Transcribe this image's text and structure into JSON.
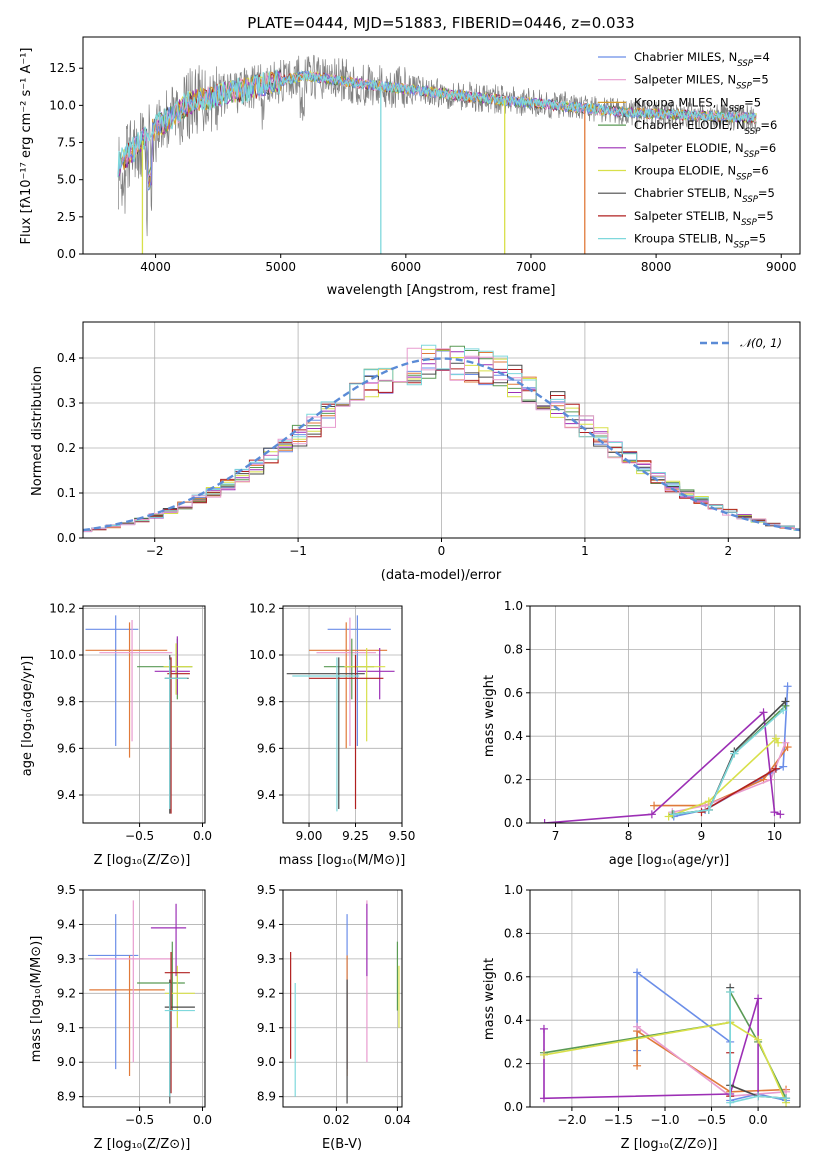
{
  "chart_data": [
    {
      "id": "spectrum",
      "type": "line",
      "title": "PLATE=0444, MJD=51883, FIBERID=0446, z=0.033",
      "xlabel": "wavelength [Angstrom, rest frame]",
      "ylabel": "Flux [fλ10⁻¹⁷ erg cm⁻² s⁻¹ A⁻¹]",
      "xlim": [
        3420,
        9150
      ],
      "ylim": [
        0,
        14.6
      ],
      "xticks": [
        4000,
        5000,
        6000,
        7000,
        8000,
        9000
      ],
      "yticks": [
        0.0,
        2.5,
        5.0,
        7.5,
        10.0,
        12.5
      ],
      "ytick_labels": [
        "0.0",
        "2.5",
        "5.0",
        "7.5",
        "10.0",
        "12.5"
      ],
      "legend_position": "top-right",
      "series": [
        {
          "name": "Chabrier MILES, N",
          "sub": "SSP",
          "tail": "=4",
          "color": "#6b8ee8"
        },
        {
          "name": "Salpeter MILES, N",
          "sub": "SSP",
          "tail": "=5",
          "color": "#e89ccf"
        },
        {
          "name": "Kroupa MILES, N",
          "sub": "SSP",
          "tail": "=5",
          "color": "#d59b2a"
        },
        {
          "name": "Chabrier ELODIE, N",
          "sub": "SSP",
          "tail": "=6",
          "color": "#5a9a55"
        },
        {
          "name": "Salpeter ELODIE, N",
          "sub": "SSP",
          "tail": "=6",
          "color": "#9c2fb5"
        },
        {
          "name": "Kroupa ELODIE, N",
          "sub": "SSP",
          "tail": "=6",
          "color": "#d8e04a"
        },
        {
          "name": "Chabrier STELIB, N",
          "sub": "SSP",
          "tail": "=5",
          "color": "#4a4a4a"
        },
        {
          "name": "Salpeter STELIB, N",
          "sub": "SSP",
          "tail": "=5",
          "color": "#b02020"
        },
        {
          "name": "Kroupa STELIB, N",
          "sub": "SSP",
          "tail": "=5",
          "color": "#7fd8dc"
        }
      ],
      "data_color": "#808080",
      "cutoffs": [
        {
          "x": 3895,
          "color": "#d8e04a"
        },
        {
          "x": 5800,
          "color": "#7fd8dc"
        },
        {
          "x": 6790,
          "color": "#d8e04a"
        },
        {
          "x": 7430,
          "color": "#e07a3a"
        }
      ]
    },
    {
      "id": "residuals",
      "type": "step",
      "xlabel": "(data-model)/error",
      "ylabel": "Normed distribution",
      "xlim": [
        -2.5,
        2.5
      ],
      "ylim": [
        0,
        0.48
      ],
      "xticks": [
        -2,
        -1,
        0,
        1,
        2
      ],
      "xtick_labels": [
        "−2",
        "−1",
        "0",
        "1",
        "2"
      ],
      "yticks": [
        0.0,
        0.1,
        0.2,
        0.3,
        0.4
      ],
      "ytick_labels": [
        "0.0",
        "0.1",
        "0.2",
        "0.3",
        "0.4"
      ],
      "grid": true,
      "legend_position": "top-right",
      "normal_label": "𝒩(0, 1)",
      "normal_color": "#5b8bd6",
      "hist_colors": [
        "#6b8ee8",
        "#e07a3a",
        "#5a9a55",
        "#9c2fb5",
        "#d8e04a",
        "#4a4a4a",
        "#b02020",
        "#7fd8dc",
        "#e89ccf"
      ]
    },
    {
      "id": "age-vs-z",
      "type": "errorbar",
      "xlabel": "Z [log₁₀(Z/Z⊙)]",
      "ylabel": "age  [log₁₀(age/yr)]",
      "xlim": [
        -0.95,
        0.02
      ],
      "ylim": [
        9.28,
        10.21
      ],
      "xticks": [
        -0.5,
        0.0
      ],
      "xtick_labels": [
        "−0.5",
        "0.0"
      ],
      "yticks": [
        9.4,
        9.6,
        9.8,
        10.0,
        10.2
      ],
      "ytick_labels": [
        "9.4",
        "9.6",
        "9.8",
        "10.0",
        "10.2"
      ],
      "grid": true,
      "points": [
        {
          "x": -0.69,
          "xerr": [
            0.24,
            0.18
          ],
          "y": 10.11,
          "yerr": [
            0.5,
            0.06
          ],
          "color": "#6b8ee8"
        },
        {
          "x": -0.58,
          "xerr": [
            0.35,
            0.3
          ],
          "y": 10.02,
          "yerr": [
            0.46,
            0.12
          ],
          "color": "#e07a3a"
        },
        {
          "x": -0.56,
          "xerr": [
            0.26,
            0.32
          ],
          "y": 10.01,
          "yerr": [
            0.38,
            0.14
          ],
          "color": "#e89ccf"
        },
        {
          "x": -0.2,
          "xerr": [
            0.32,
            0.12
          ],
          "y": 9.95,
          "yerr": [
            0.14,
            0.12
          ],
          "color": "#5a9a55"
        },
        {
          "x": -0.2,
          "xerr": [
            0.18,
            0.1
          ],
          "y": 9.93,
          "yerr": [
            0.1,
            0.15
          ],
          "color": "#9c2fb5"
        },
        {
          "x": -0.21,
          "xerr": [
            0.1,
            0.13
          ],
          "y": 9.95,
          "yerr": [
            0.12,
            0.1
          ],
          "color": "#d8e04a"
        },
        {
          "x": -0.26,
          "xerr": [
            0.04,
            0.15
          ],
          "y": 9.9,
          "yerr": [
            0.58,
            0.1
          ],
          "color": "#4a4a4a"
        },
        {
          "x": -0.25,
          "xerr": [
            0.03,
            0.15
          ],
          "y": 9.92,
          "yerr": [
            0.6,
            0.07
          ],
          "color": "#b02020"
        },
        {
          "x": -0.26,
          "xerr": [
            0.04,
            0.14
          ],
          "y": 9.9,
          "yerr": [
            0.56,
            0.08
          ],
          "color": "#7fd8dc"
        }
      ]
    },
    {
      "id": "age-vs-mass",
      "type": "errorbar",
      "xlabel": "mass [log₁₀(M/M⊙)]",
      "ylabel": "",
      "xlim": [
        8.86,
        9.5
      ],
      "ylim": [
        9.28,
        10.21
      ],
      "xticks": [
        9.0,
        9.25,
        9.5
      ],
      "xtick_labels": [
        "9.00",
        "9.25",
        "9.50"
      ],
      "yticks": [
        9.4,
        9.6,
        9.8,
        10.0,
        10.2
      ],
      "ytick_labels": [
        "9.4",
        "9.6",
        "9.8",
        "10.0",
        "10.2"
      ],
      "grid": true,
      "points": [
        {
          "x": 9.26,
          "xerr": [
            0.16,
            0.18
          ],
          "y": 10.11,
          "yerr": [
            0.5,
            0.06
          ],
          "color": "#6b8ee8"
        },
        {
          "x": 9.2,
          "xerr": [
            0.2,
            0.22
          ],
          "y": 10.02,
          "yerr": [
            0.42,
            0.12
          ],
          "color": "#e07a3a"
        },
        {
          "x": 9.22,
          "xerr": [
            0.18,
            0.14
          ],
          "y": 10.01,
          "yerr": [
            0.4,
            0.15
          ],
          "color": "#e89ccf"
        },
        {
          "x": 9.23,
          "xerr": [
            0.15,
            0.12
          ],
          "y": 9.95,
          "yerr": [
            0.14,
            0.12
          ],
          "color": "#5a9a55"
        },
        {
          "x": 9.38,
          "xerr": [
            0.12,
            0.08
          ],
          "y": 9.93,
          "yerr": [
            0.12,
            0.1
          ],
          "color": "#9c2fb5"
        },
        {
          "x": 9.31,
          "xerr": [
            0.12,
            0.1
          ],
          "y": 9.95,
          "yerr": [
            0.32,
            0.08
          ],
          "color": "#d8e04a"
        },
        {
          "x": 9.16,
          "xerr": [
            0.28,
            0.14
          ],
          "y": 9.92,
          "yerr": [
            0.58,
            0.07
          ],
          "color": "#4a4a4a"
        },
        {
          "x": 9.25,
          "xerr": [
            0.25,
            0.15
          ],
          "y": 9.9,
          "yerr": [
            0.56,
            0.1
          ],
          "color": "#b02020"
        },
        {
          "x": 9.15,
          "xerr": [
            0.24,
            0.12
          ],
          "y": 9.91,
          "yerr": [
            0.58,
            0.08
          ],
          "color": "#7fd8dc"
        }
      ]
    },
    {
      "id": "weight-vs-age",
      "type": "line",
      "xlabel": "age  [log₁₀(age/yr)]",
      "ylabel": "mass weight",
      "xlim": [
        6.65,
        10.35
      ],
      "ylim": [
        0,
        1.0
      ],
      "xticks": [
        7,
        8,
        9,
        10
      ],
      "yticks": [
        0.0,
        0.2,
        0.4,
        0.6,
        0.8,
        1.0
      ],
      "ytick_labels": [
        "0.0",
        "0.2",
        "0.4",
        "0.6",
        "0.8",
        "1.0"
      ],
      "grid": true,
      "series": [
        {
          "color": "#6b8ee8",
          "x": [
            8.62,
            9.05,
            9.95,
            10.12,
            10.18
          ],
          "y": [
            0.03,
            0.06,
            0.23,
            0.26,
            0.63
          ]
        },
        {
          "color": "#e07a3a",
          "x": [
            8.35,
            9.05,
            9.85,
            10.18
          ],
          "y": [
            0.08,
            0.08,
            0.2,
            0.35
          ]
        },
        {
          "color": "#e89ccf",
          "x": [
            8.6,
            9.05,
            9.95,
            10.15
          ],
          "y": [
            0.05,
            0.08,
            0.2,
            0.37
          ]
        },
        {
          "color": "#5a9a55",
          "x": [
            8.6,
            9.1,
            9.45,
            10.15
          ],
          "y": [
            0.04,
            0.06,
            0.32,
            0.54
          ]
        },
        {
          "color": "#9c2fb5",
          "x": [
            6.85,
            8.32,
            9.85,
            10.0,
            10.08
          ],
          "y": [
            0.0,
            0.04,
            0.51,
            0.05,
            0.04
          ]
        },
        {
          "color": "#d8e04a",
          "x": [
            8.55,
            9.1,
            10.02,
            10.05
          ],
          "y": [
            0.03,
            0.1,
            0.39,
            0.37
          ]
        },
        {
          "color": "#4a4a4a",
          "x": [
            8.62,
            9.1,
            9.45,
            10.15
          ],
          "y": [
            0.04,
            0.06,
            0.33,
            0.56
          ]
        },
        {
          "color": "#b02020",
          "x": [
            9.0,
            10.02
          ],
          "y": [
            0.05,
            0.25
          ]
        },
        {
          "color": "#7fd8dc",
          "x": [
            8.62,
            9.1,
            9.45,
            10.12
          ],
          "y": [
            0.04,
            0.06,
            0.32,
            0.52
          ]
        }
      ]
    },
    {
      "id": "mass-vs-z",
      "type": "errorbar",
      "xlabel": "Z [log₁₀(Z/Z⊙)]",
      "ylabel": "mass [log₁₀(M/M⊙)]",
      "xlim": [
        -0.95,
        0.02
      ],
      "ylim": [
        8.87,
        9.5
      ],
      "xticks": [
        -0.5,
        0.0
      ],
      "xtick_labels": [
        "−0.5",
        "0.0"
      ],
      "yticks": [
        8.9,
        9.0,
        9.1,
        9.2,
        9.3,
        9.4,
        9.5
      ],
      "ytick_labels": [
        "8.9",
        "9.0",
        "9.1",
        "9.2",
        "9.3",
        "9.4",
        "9.5"
      ],
      "grid": true,
      "points": [
        {
          "x": -0.69,
          "xerr": [
            0.22,
            0.18
          ],
          "y": 9.31,
          "yerr": [
            0.33,
            0.12
          ],
          "color": "#6b8ee8"
        },
        {
          "x": -0.58,
          "xerr": [
            0.32,
            0.28
          ],
          "y": 9.21,
          "yerr": [
            0.25,
            0.1
          ],
          "color": "#e07a3a"
        },
        {
          "x": -0.55,
          "xerr": [
            0.3,
            0.32
          ],
          "y": 9.3,
          "yerr": [
            0.3,
            0.17
          ],
          "color": "#e89ccf"
        },
        {
          "x": -0.24,
          "xerr": [
            0.28,
            0.1
          ],
          "y": 9.23,
          "yerr": [
            0.08,
            0.12
          ],
          "color": "#5a9a55"
        },
        {
          "x": -0.21,
          "xerr": [
            0.2,
            0.08
          ],
          "y": 9.39,
          "yerr": [
            0.14,
            0.07
          ],
          "color": "#9c2fb5"
        },
        {
          "x": -0.2,
          "xerr": [
            0.1,
            0.14
          ],
          "y": 9.2,
          "yerr": [
            0.1,
            0.08
          ],
          "color": "#d8e04a"
        },
        {
          "x": -0.26,
          "xerr": [
            0.04,
            0.2
          ],
          "y": 9.16,
          "yerr": [
            0.28,
            0.08
          ],
          "color": "#4a4a4a"
        },
        {
          "x": -0.25,
          "xerr": [
            0.05,
            0.15
          ],
          "y": 9.26,
          "yerr": [
            0.35,
            0.06
          ],
          "color": "#b02020"
        },
        {
          "x": -0.26,
          "xerr": [
            0.04,
            0.2
          ],
          "y": 9.15,
          "yerr": [
            0.25,
            0.08
          ],
          "color": "#7fd8dc"
        }
      ]
    },
    {
      "id": "mass-vs-ebv",
      "type": "errorbar",
      "xlabel": "E(B-V)",
      "ylabel": "",
      "xlim": [
        0.0025,
        0.0415
      ],
      "ylim": [
        8.87,
        9.5
      ],
      "xticks": [
        0.02,
        0.04
      ],
      "xtick_labels": [
        "0.02",
        "0.04"
      ],
      "yticks": [
        8.9,
        9.0,
        9.1,
        9.2,
        9.3,
        9.4,
        9.5
      ],
      "ytick_labels": [
        "8.9",
        "9.0",
        "9.1",
        "9.2",
        "9.3",
        "9.4",
        "9.5"
      ],
      "grid": true,
      "points": [
        {
          "x": 0.0235,
          "xerr": [
            0,
            0
          ],
          "y": 9.31,
          "yerr": [
            0.33,
            0.12
          ],
          "color": "#6b8ee8"
        },
        {
          "x": 0.0235,
          "xerr": [
            0,
            0
          ],
          "y": 9.21,
          "yerr": [
            0.25,
            0.1
          ],
          "color": "#e07a3a"
        },
        {
          "x": 0.03,
          "xerr": [
            0,
            0
          ],
          "y": 9.3,
          "yerr": [
            0.3,
            0.17
          ],
          "color": "#e89ccf"
        },
        {
          "x": 0.04,
          "xerr": [
            0,
            0
          ],
          "y": 9.23,
          "yerr": [
            0.08,
            0.12
          ],
          "color": "#5a9a55"
        },
        {
          "x": 0.03,
          "xerr": [
            0,
            0
          ],
          "y": 9.39,
          "yerr": [
            0.14,
            0.07
          ],
          "color": "#9c2fb5"
        },
        {
          "x": 0.0405,
          "xerr": [
            0,
            0
          ],
          "y": 9.2,
          "yerr": [
            0.1,
            0.08
          ],
          "color": "#d8e04a"
        },
        {
          "x": 0.0235,
          "xerr": [
            0,
            0
          ],
          "y": 9.16,
          "yerr": [
            0.28,
            0.08
          ],
          "color": "#4a4a4a"
        },
        {
          "x": 0.005,
          "xerr": [
            0,
            0
          ],
          "y": 9.26,
          "yerr": [
            0.25,
            0.06
          ],
          "color": "#b02020"
        },
        {
          "x": 0.0065,
          "xerr": [
            0,
            0
          ],
          "y": 9.15,
          "yerr": [
            0.25,
            0.08
          ],
          "color": "#7fd8dc"
        }
      ]
    },
    {
      "id": "weight-vs-z",
      "type": "line",
      "xlabel": "Z [log₁₀(Z/Z⊙)]",
      "ylabel": "mass weight",
      "xlim": [
        -2.45,
        0.45
      ],
      "ylim": [
        0,
        1.0
      ],
      "xticks": [
        -2.0,
        -1.5,
        -1.0,
        -0.5,
        0.0
      ],
      "xtick_labels": [
        "−2.0",
        "−1.5",
        "−1.0",
        "−0.5",
        "0.0"
      ],
      "yticks": [
        0.0,
        0.2,
        0.4,
        0.6,
        0.8,
        1.0
      ],
      "ytick_labels": [
        "0.0",
        "0.2",
        "0.4",
        "0.6",
        "0.8",
        "1.0"
      ],
      "grid": true,
      "series": [
        {
          "color": "#6b8ee8",
          "x": [
            -1.3,
            -1.3,
            -0.3,
            -0.3,
            0.0,
            0.3
          ],
          "y": [
            0.26,
            0.62,
            0.3,
            0.03,
            0.06,
            0.03
          ]
        },
        {
          "color": "#e07a3a",
          "x": [
            -1.3,
            -1.3,
            -0.3,
            0.3
          ],
          "y": [
            0.19,
            0.35,
            0.07,
            0.08
          ]
        },
        {
          "color": "#e89ccf",
          "x": [
            -1.3,
            -0.3,
            0.3
          ],
          "y": [
            0.37,
            0.05,
            0.07
          ]
        },
        {
          "color": "#5a9a55",
          "x": [
            -2.3,
            -0.3,
            -0.3,
            0.0,
            0.3
          ],
          "y": [
            0.25,
            0.39,
            0.53,
            0.3,
            0.04
          ]
        },
        {
          "color": "#9c2fb5",
          "x": [
            -2.3,
            -2.3,
            -0.3,
            0.0,
            0.0
          ],
          "y": [
            0.36,
            0.04,
            0.06,
            0.5,
            0.05
          ]
        },
        {
          "color": "#d8e04a",
          "x": [
            -2.3,
            -0.3,
            0.0,
            0.3
          ],
          "y": [
            0.24,
            0.39,
            0.31,
            0.02
          ]
        },
        {
          "color": "#4a4a4a",
          "x": [
            -0.3,
            -0.3,
            0.0,
            0.3
          ],
          "y": [
            0.55,
            0.1,
            0.05,
            0.04
          ]
        },
        {
          "color": "#b02020",
          "x": [
            -0.3,
            -0.3
          ],
          "y": [
            0.05,
            0.25
          ]
        },
        {
          "color": "#7fd8dc",
          "x": [
            -0.3,
            -0.3,
            0.0,
            0.3
          ],
          "y": [
            0.53,
            0.02,
            0.05,
            0.04
          ]
        }
      ]
    }
  ]
}
